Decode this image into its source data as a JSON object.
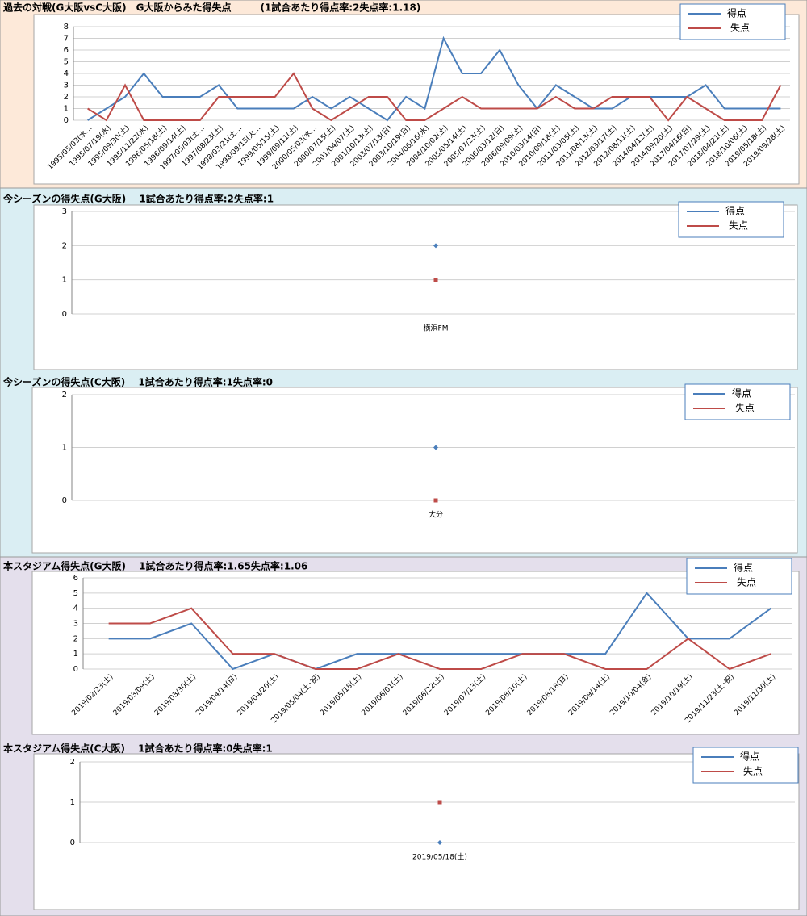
{
  "chart_data": [
    {
      "type": "line",
      "title": "過去の対戦(G大阪vsC大阪)　G大阪からみた得失点　　　(1試合あたり得点率:2失点率:1.18)",
      "categories": [
        "1995/05/03(水…",
        "1995/07/19(水)",
        "1995/09/30(土)",
        "1995/11/22(水)",
        "1996/05/18(土)",
        "1996/09/14(土)",
        "1997/05/03(土…",
        "1997/08/23(土)",
        "1998/03/21(土…",
        "1998/09/15(火…",
        "1999/05/15(土)",
        "1999/09/11(土)",
        "2000/05/03(水…",
        "2000/07/15(土)",
        "2001/04/07(土)",
        "2001/10/13(土)",
        "2003/07/13(日)",
        "2003/10/19(日)",
        "2004/06/16(水)",
        "2004/10/02(土)",
        "2005/05/14(土)",
        "2005/07/23(土)",
        "2006/03/12(日)",
        "2006/09/09(土)",
        "2010/03/14(日)",
        "2010/09/18(土)",
        "2011/03/05(土)",
        "2011/08/13(土)",
        "2012/03/17(土)",
        "2012/08/11(土)",
        "2014/04/12(土)",
        "2014/09/20(土)",
        "2017/04/16(日)",
        "2017/07/29(土)",
        "2018/04/21(土)",
        "2018/10/06(土)",
        "2019/05/18(土)",
        "2019/09/28(土)"
      ],
      "series": [
        {
          "name": "得点",
          "color": "#4a7ebb",
          "values": [
            0,
            1,
            2,
            4,
            2,
            2,
            2,
            3,
            1,
            1,
            1,
            1,
            2,
            1,
            2,
            1,
            0,
            2,
            1,
            7,
            4,
            4,
            6,
            3,
            1,
            3,
            2,
            1,
            1,
            2,
            2,
            2,
            2,
            3,
            1,
            1,
            1,
            1
          ]
        },
        {
          "name": "失点",
          "color": "#be4b48",
          "values": [
            1,
            0,
            3,
            0,
            0,
            0,
            0,
            2,
            2,
            2,
            2,
            4,
            1,
            0,
            1,
            2,
            2,
            0,
            0,
            1,
            2,
            1,
            1,
            1,
            1,
            2,
            1,
            1,
            2,
            2,
            2,
            0,
            2,
            1,
            0,
            0,
            0,
            3
          ]
        }
      ],
      "ylim": [
        0,
        8
      ],
      "yticks": [
        0,
        1,
        2,
        3,
        4,
        5,
        6,
        7,
        8
      ],
      "grid": true,
      "legend": "upper right",
      "markers": false
    },
    {
      "type": "line",
      "title": "今シーズンの得失点(G大阪)　 1試合あたり得点率:2失点率:1",
      "categories": [
        "横浜FM"
      ],
      "series": [
        {
          "name": "得点",
          "color": "#4a7ebb",
          "values": [
            2
          ]
        },
        {
          "name": "失点",
          "color": "#be4b48",
          "values": [
            1
          ]
        }
      ],
      "ylim": [
        0,
        3
      ],
      "yticks": [
        0,
        1,
        2,
        3
      ],
      "grid": true,
      "legend": "upper right",
      "markers": true
    },
    {
      "type": "line",
      "title": "今シーズンの得失点(C大阪)　 1試合あたり得点率:1失点率:0",
      "categories": [
        "大分"
      ],
      "series": [
        {
          "name": "得点",
          "color": "#4a7ebb",
          "values": [
            1
          ]
        },
        {
          "name": "失点",
          "color": "#be4b48",
          "values": [
            0
          ]
        }
      ],
      "ylim": [
        0,
        2
      ],
      "yticks": [
        0,
        1,
        2
      ],
      "grid": true,
      "legend": "upper right",
      "markers": true
    },
    {
      "type": "line",
      "title": "本スタジアム得失点(G大阪)　 1試合あたり得点率:1.65失点率:1.06",
      "categories": [
        "2019/02/23(土)",
        "2019/03/09(土)",
        "2019/03/30(土)",
        "2019/04/14(日)",
        "2019/04/20(土)",
        "2019/05/04(土･祝)",
        "2019/05/18(土)",
        "2019/06/01(土)",
        "2019/06/22(土)",
        "2019/07/13(土)",
        "2019/08/10(土)",
        "2019/08/18(日)",
        "2019/09/14(土)",
        "2019/10/04(金)",
        "2019/10/19(土)",
        "2019/11/23(土･祝)",
        "2019/11/30(土)"
      ],
      "series": [
        {
          "name": "得点",
          "color": "#4a7ebb",
          "values": [
            2,
            2,
            3,
            0,
            1,
            0,
            1,
            1,
            1,
            1,
            1,
            1,
            1,
            5,
            2,
            2,
            4
          ]
        },
        {
          "name": "失点",
          "color": "#be4b48",
          "values": [
            3,
            3,
            4,
            1,
            1,
            0,
            0,
            1,
            0,
            0,
            1,
            1,
            0,
            0,
            2,
            0,
            1
          ]
        }
      ],
      "ylim": [
        0,
        6
      ],
      "yticks": [
        0,
        1,
        2,
        3,
        4,
        5,
        6
      ],
      "grid": true,
      "legend": "upper right",
      "markers": false
    },
    {
      "type": "line",
      "title": "本スタジアム得失点(C大阪)　 1試合あたり得点率:0失点率:1",
      "categories": [
        "2019/05/18(土)"
      ],
      "series": [
        {
          "name": "得点",
          "color": "#4a7ebb",
          "values": [
            0
          ]
        },
        {
          "name": "失点",
          "color": "#be4b48",
          "values": [
            1
          ]
        }
      ],
      "ylim": [
        0,
        2
      ],
      "yticks": [
        0,
        1,
        2
      ],
      "grid": true,
      "legend": "upper right",
      "markers": true
    }
  ]
}
